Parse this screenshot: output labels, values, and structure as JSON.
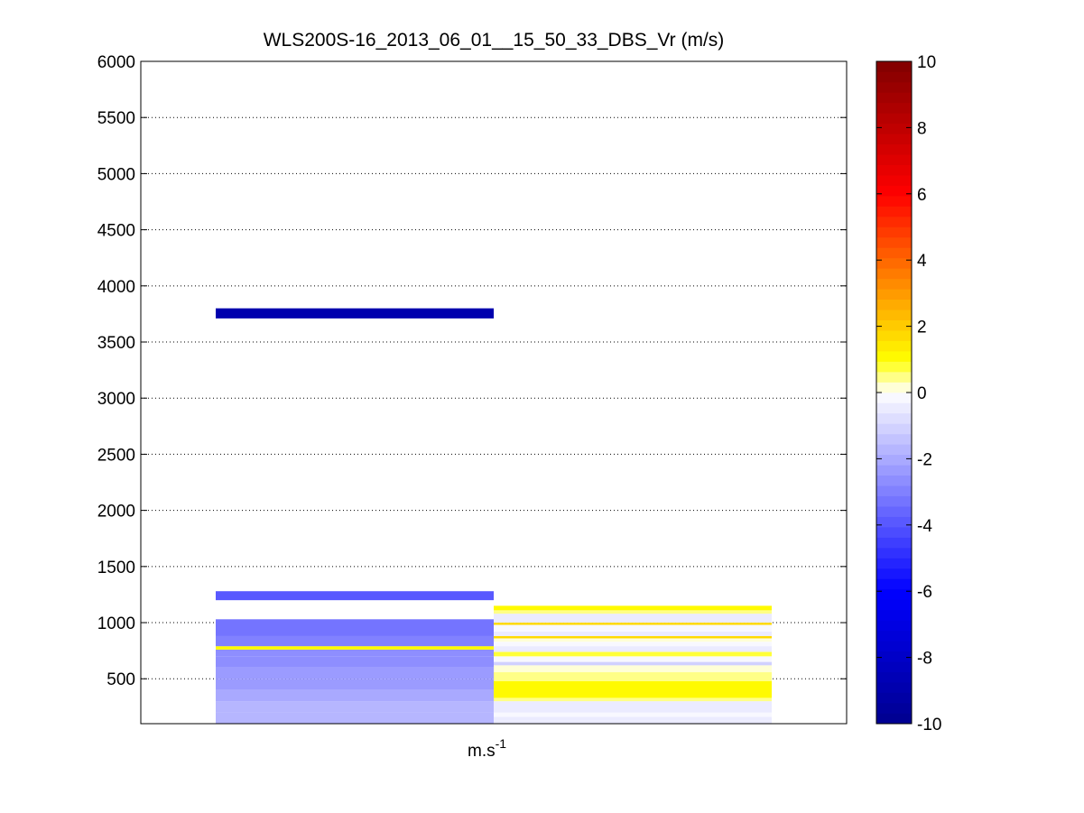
{
  "chart_data": {
    "type": "heatmap",
    "title": "WLS200S-16_2013_06_01__15_50_33_DBS_Vr (m/s)",
    "xlabel": "m.s",
    "xlabel_superscript": "-1",
    "ylabel": "",
    "ylim": [
      100,
      6000
    ],
    "yticks": [
      500,
      1000,
      1500,
      2000,
      2500,
      3000,
      3500,
      4000,
      4500,
      5000,
      5500,
      6000
    ],
    "grid": "horizontal-dotted",
    "columns": [
      {
        "cells": [
          {
            "y0": 100,
            "y1": 200,
            "v": -1.6
          },
          {
            "y0": 200,
            "y1": 300,
            "v": -1.8
          },
          {
            "y0": 300,
            "y1": 400,
            "v": -2.0
          },
          {
            "y0": 400,
            "y1": 500,
            "v": -2.2
          },
          {
            "y0": 500,
            "y1": 600,
            "v": -2.4
          },
          {
            "y0": 600,
            "y1": 700,
            "v": -2.6
          },
          {
            "y0": 700,
            "y1": 760,
            "v": -2.8
          },
          {
            "y0": 760,
            "y1": 790,
            "v": 1.2
          },
          {
            "y0": 790,
            "y1": 880,
            "v": -3.0
          },
          {
            "y0": 880,
            "y1": 960,
            "v": -3.2
          },
          {
            "y0": 960,
            "y1": 1030,
            "v": -3.4
          },
          {
            "y0": 1200,
            "y1": 1280,
            "v": -3.8
          },
          {
            "y0": 3710,
            "y1": 3800,
            "v": -9.0
          }
        ]
      },
      {
        "cells": [
          {
            "y0": 100,
            "y1": 130,
            "v": -0.4
          },
          {
            "y0": 130,
            "y1": 160,
            "v": -0.6
          },
          {
            "y0": 160,
            "y1": 200,
            "v": -0.2
          },
          {
            "y0": 200,
            "y1": 300,
            "v": -0.5
          },
          {
            "y0": 300,
            "y1": 330,
            "v": 0.4
          },
          {
            "y0": 330,
            "y1": 480,
            "v": 1.0
          },
          {
            "y0": 480,
            "y1": 560,
            "v": 0.5
          },
          {
            "y0": 560,
            "y1": 620,
            "v": 0.3
          },
          {
            "y0": 620,
            "y1": 650,
            "v": -1.0
          },
          {
            "y0": 650,
            "y1": 700,
            "v": -0.3
          },
          {
            "y0": 700,
            "y1": 740,
            "v": 0.7
          },
          {
            "y0": 740,
            "y1": 790,
            "v": -0.4
          },
          {
            "y0": 790,
            "y1": 830,
            "v": -0.2
          },
          {
            "y0": 830,
            "y1": 860,
            "v": 0.3
          },
          {
            "y0": 860,
            "y1": 880,
            "v": 1.7
          },
          {
            "y0": 880,
            "y1": 920,
            "v": -0.4
          },
          {
            "y0": 920,
            "y1": 980,
            "v": -0.2
          },
          {
            "y0": 980,
            "y1": 1000,
            "v": 1.6
          },
          {
            "y0": 1000,
            "y1": 1080,
            "v": -0.5
          },
          {
            "y0": 1080,
            "y1": 1110,
            "v": 0.4
          },
          {
            "y0": 1110,
            "y1": 1150,
            "v": 1.1
          }
        ]
      }
    ],
    "colorbar": {
      "range": [
        -10,
        10
      ],
      "ticks": [
        -10,
        -8,
        -6,
        -4,
        -2,
        0,
        2,
        4,
        6,
        8,
        10
      ],
      "levels": 64,
      "stops": [
        {
          "v": -10,
          "color": "#00008f"
        },
        {
          "v": -6,
          "color": "#0000ff"
        },
        {
          "v": 0,
          "color": "#ffffff"
        },
        {
          "v": 1,
          "color": "#ffff00"
        },
        {
          "v": 6,
          "color": "#ff0000"
        },
        {
          "v": 10,
          "color": "#800000"
        }
      ]
    }
  }
}
